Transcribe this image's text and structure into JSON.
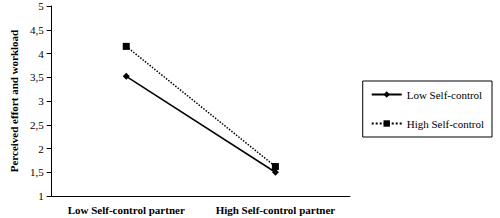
{
  "chart_data": {
    "type": "line",
    "y_label": "Perceived effort and workload",
    "categories": [
      "Low Self-control partner",
      "High Self-control partner"
    ],
    "series": [
      {
        "name": "Low Self-control",
        "color": "#000000",
        "marker": "diamond",
        "line_style": "solid",
        "values": [
          3.52,
          1.5
        ]
      },
      {
        "name": "High Self-control",
        "color": "#000000",
        "marker": "square",
        "line_style": "dotted",
        "values": [
          4.15,
          1.62
        ]
      }
    ],
    "ylim": [
      1,
      5
    ],
    "yticks": [
      1,
      {
        "value": 1.5,
        "label": "1,5"
      },
      2,
      {
        "value": 2.5,
        "label": "2,5"
      },
      3,
      {
        "value": 3.5,
        "label": "3,5"
      },
      4,
      {
        "value": 4.5,
        "label": "4,5"
      },
      5
    ],
    "grid": false,
    "legend": "right"
  }
}
